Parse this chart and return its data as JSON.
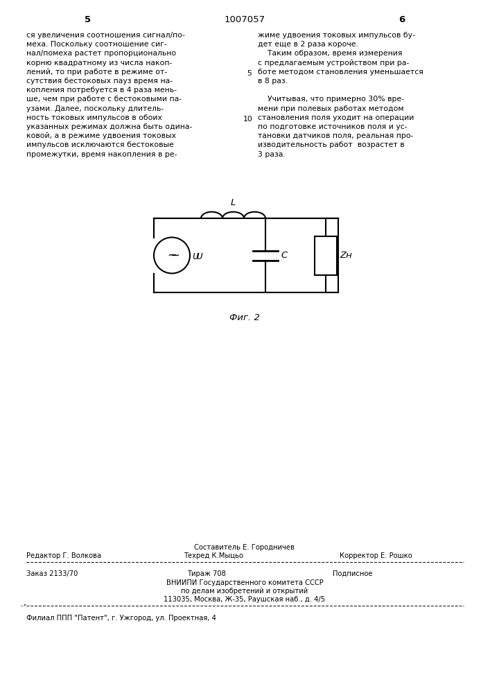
{
  "page_number_left": "5",
  "patent_number": "1007057",
  "page_number_right": "6",
  "left_column_text": [
    "ся увеличения соотношения сигнал/по-",
    "меха. Поскольку соотношение сиг-",
    "нал/помеха растет пропорционально",
    "корню квадратному из числа накоп-",
    "лений, то при работе в режиме от-",
    "сутствия бестоковых пауз время на-",
    "копления потребуется в 4 раза мень-",
    "ше, чем при работе с бестоковыми па-",
    "узами. Далее, поскольку длитель-",
    "ность токовых импульсов в обоих",
    "указанных режимах должна быть одина-",
    "ковой, а в режиме удвоения токовых",
    "импульсов исключаются бестоковые",
    "промежутки, время накопления в ре-"
  ],
  "line_number_5": "5",
  "line_number_10": "10",
  "right_column_text": [
    "жиме удвоения токовых импульсов бу-",
    "дет еще в 2 раза короче.",
    "    Таким образом, время измерения",
    "с предлагаемым устройством при ра-",
    "боте методом становления уменьшается",
    "в 8 раз.",
    "",
    "    Учитывая, что примерно 30% вре-",
    "мени при полевых работах методом",
    "становления поля уходит на операции",
    "по подготовке источников поля и ус-",
    "тановки датчиков поля, реальная про-",
    "изводительность работ  возрастет в",
    "3 раза."
  ],
  "fig_caption": "Фиг. 2",
  "circuit_label_L": "L",
  "circuit_label_U": "U",
  "circuit_label_C": "C",
  "circuit_label_ZH": "Zн",
  "footer_sestavitel": "Составитель Е. Городничев",
  "footer_redaktor": "Редактор Г. Волкова",
  "footer_tehred": "Техред К.Мыцьо",
  "footer_korrektor": "Корректор Е. Рошко",
  "footer_zakaz": "Заказ 2133/70",
  "footer_tirazh": "Тираж 708",
  "footer_podpisnoe": "Подписное",
  "footer_vniipи": "ВНИИПИ Государственного комитета СССР",
  "footer_dela": "по делам изобретений и открытий",
  "footer_addr": "113035, Москва, Ж-35, Раушская наб., д. 4/5",
  "footer_filial": "Филиал ППП \"Патент\", г. Ужгород, ул. Проектная, 4",
  "bg_color": "#ffffff",
  "text_color": "#000000",
  "font_size_main": 7.8,
  "font_size_header": 9.5,
  "font_size_footer": 7.2,
  "font_size_caption": 9.5,
  "font_size_circuit": 9.5
}
